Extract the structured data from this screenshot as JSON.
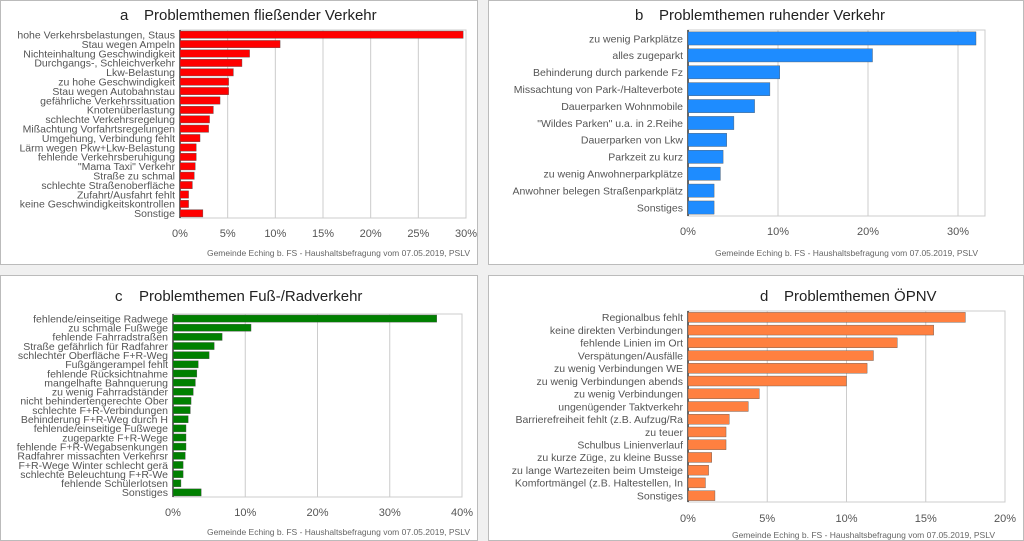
{
  "footnote": "Gemeinde Eching b. FS - Haushaltsbefragung vom 07.05.2019, PSLV",
  "chart_data": [
    {
      "type": "bar",
      "orientation": "horizontal",
      "letter": "a",
      "title": "Problemthemen fließender Verkehr",
      "color": "#ff0000",
      "xlim": [
        0,
        30
      ],
      "ticks": [
        0,
        5,
        10,
        15,
        20,
        25,
        30
      ],
      "tick_suffix": "%",
      "categories": [
        "hohe Verkehrsbelastungen, Staus",
        "Stau wegen Ampeln",
        "Nichteinhaltung Geschwindigkeit",
        "Durchgangs-, Schleichverkehr",
        "Lkw-Belastung",
        "zu hohe Geschwindigkeit",
        "Stau wegen Autobahnstau",
        "gefährliche Verkehrssituation",
        "Knotenüberlastung",
        "schlechte Verkehrsregelung",
        "Mißachtung Vorfahrtsregelungen",
        "Umgehung, Verbindung fehlt",
        "Lärm wegen Pkw+Lkw-Belastung",
        "fehlende Verkehrsberuhigung",
        "\"Mama Taxi\" Verkehr",
        "Straße zu schmal",
        "schlechte Straßenoberfläche",
        "Zufahrt/Ausfahrt fehlt",
        "keine Geschwindigkeitskontrollen",
        "Sonstige"
      ],
      "values": [
        29.7,
        10.5,
        7.3,
        6.5,
        5.6,
        5.1,
        5.1,
        4.2,
        3.5,
        3.1,
        3.0,
        2.1,
        1.7,
        1.7,
        1.6,
        1.5,
        1.3,
        0.9,
        0.9,
        2.4
      ]
    },
    {
      "type": "bar",
      "orientation": "horizontal",
      "letter": "b",
      "title": "Problemthemen ruhender Verkehr",
      "color": "#1e8cff",
      "xlim": [
        0,
        33
      ],
      "ticks": [
        0,
        10,
        20,
        30
      ],
      "tick_suffix": "%",
      "categories": [
        "zu wenig Parkplätze",
        "alles zugeparkt",
        "Behinderung durch parkende Fz",
        "Missachtung von Park-/Halteverbote",
        "Dauerparken Wohnmobile",
        "\"Wildes Parken\" u.a. in 2.Reihe",
        "Dauerparken von Lkw",
        "Parkzeit zu kurz",
        "zu wenig Anwohnerparkplätze",
        "Anwohner belegen Straßenparkplätz",
        "Sonstiges"
      ],
      "values": [
        32.0,
        20.5,
        10.2,
        9.1,
        7.4,
        5.1,
        4.3,
        3.9,
        3.6,
        2.9,
        2.9
      ]
    },
    {
      "type": "bar",
      "orientation": "horizontal",
      "letter": "c",
      "title": "Problemthemen Fuß-/Radverkehr",
      "color": "#008000",
      "xlim": [
        0,
        40
      ],
      "ticks": [
        0,
        10,
        20,
        30,
        40
      ],
      "tick_suffix": "%",
      "categories": [
        "fehlende/einseitige Radwege",
        "zu schmale Fußwege",
        "fehlende Fahrradstraßen",
        "Straße gefährlich für Radfahrer",
        "schlechter Oberfläche F+R-Weg",
        "Fußgängerampel fehlt",
        "fehlende Rücksichtnahme",
        "mangelhafte Bahnquerung",
        "zu wenig Fahrradständer",
        "nicht behindertengerechte Ober",
        "schlechte F+R-Verbindungen",
        "Behinderung F+R-Weg durch H",
        "fehlende/einseitige Fußwege",
        "zugeparkte F+R-Wege",
        "fehlende F+R-Wegabsenkungen",
        "Radfahrer missachten Verkehrsr",
        "F+R-Wege Winter schlecht gerä",
        "schlechte Beleuchtung F+R-We",
        "fehlende Schülerlotsen",
        "Sonstiges"
      ],
      "values": [
        36.5,
        10.8,
        6.8,
        5.7,
        5.0,
        3.5,
        3.3,
        3.1,
        2.8,
        2.5,
        2.4,
        2.1,
        1.8,
        1.8,
        1.8,
        1.7,
        1.4,
        1.4,
        1.1,
        3.9
      ]
    },
    {
      "type": "bar",
      "orientation": "horizontal",
      "letter": "d",
      "title": "Problemthemen ÖPNV",
      "color": "#ff8040",
      "xlim": [
        0,
        20
      ],
      "ticks": [
        0,
        5,
        10,
        15,
        20
      ],
      "tick_suffix": "%",
      "categories": [
        "Regionalbus fehlt",
        "keine direkten Verbindungen",
        "fehlende Linien im Ort",
        "Verspätungen/Ausfälle",
        "zu wenig Verbindungen WE",
        "zu wenig Verbindungen abends",
        "zu wenig Verbindungen",
        "ungenügender Taktverkehr",
        "Barrierefreiheit fehlt (z.B. Aufzug/Ra",
        "zu teuer",
        "Schulbus Linienverlauf",
        "zu kurze Züge, zu kleine Busse",
        "zu lange Wartezeiten beim Umsteige",
        "Komfortmängel (z.B. Haltestellen, In",
        "Sonstiges"
      ],
      "values": [
        17.5,
        15.5,
        13.2,
        11.7,
        11.3,
        10.0,
        4.5,
        3.8,
        2.6,
        2.4,
        2.4,
        1.5,
        1.3,
        1.1,
        1.7
      ]
    }
  ]
}
